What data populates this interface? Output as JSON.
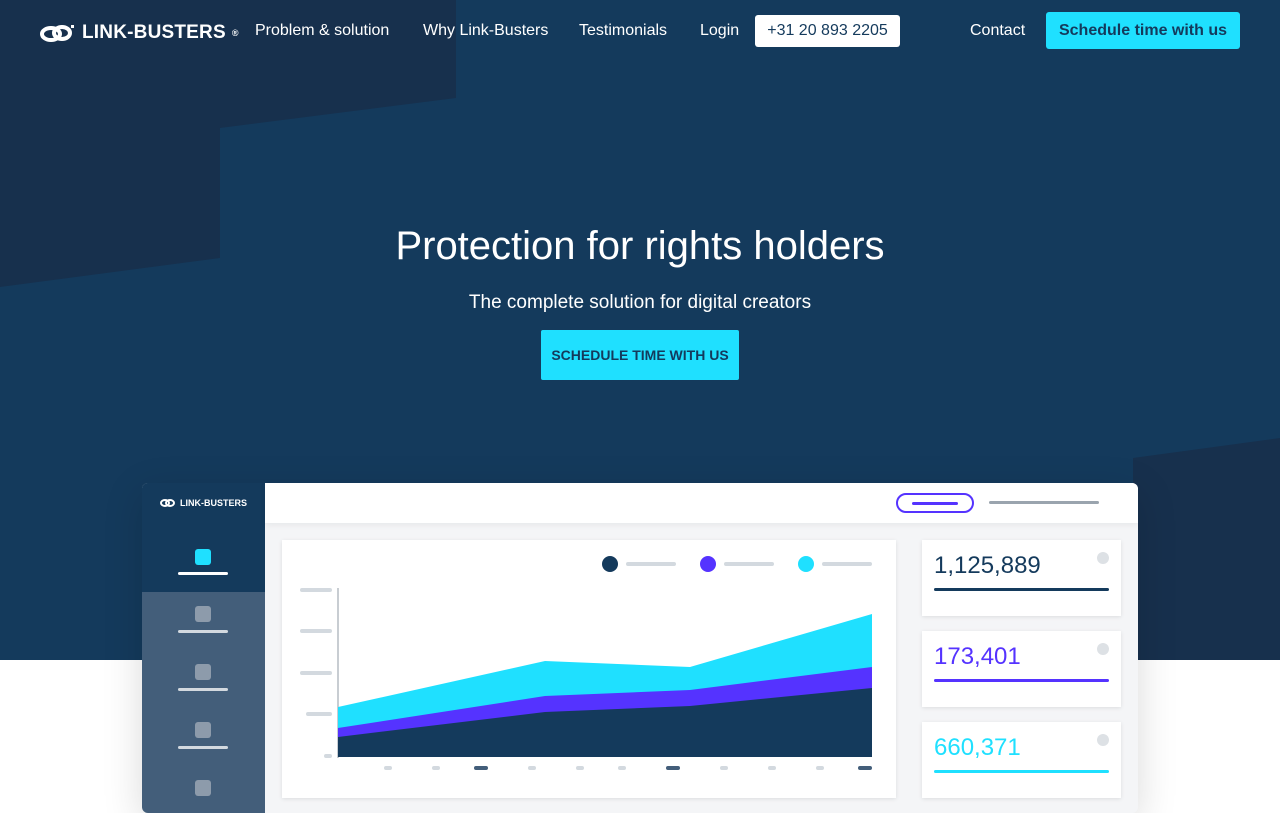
{
  "brand": {
    "name": "LINK-BUSTERS",
    "mark": "®"
  },
  "nav": {
    "links": [
      "Problem & solution",
      "Why Link-Busters",
      "Testimonials",
      "Login"
    ],
    "phone": "+31 20 893 2205",
    "contact": "Contact",
    "schedule": "Schedule time with us"
  },
  "hero": {
    "title": "Protection for rights holders",
    "subtitle": "The complete solution for digital creators",
    "cta": "SCHEDULE TIME WITH US"
  },
  "dashboard": {
    "brand": "LINK-BUSTERS",
    "stats": [
      {
        "value": "1,125,889",
        "color": "#143a5c"
      },
      {
        "value": "173,401",
        "color": "#5533ff"
      },
      {
        "value": "660,371",
        "color": "#1fe0ff"
      }
    ]
  },
  "colors": {
    "navy": "#143a5c",
    "purple": "#5533ff",
    "cyan": "#1fe0ff"
  }
}
